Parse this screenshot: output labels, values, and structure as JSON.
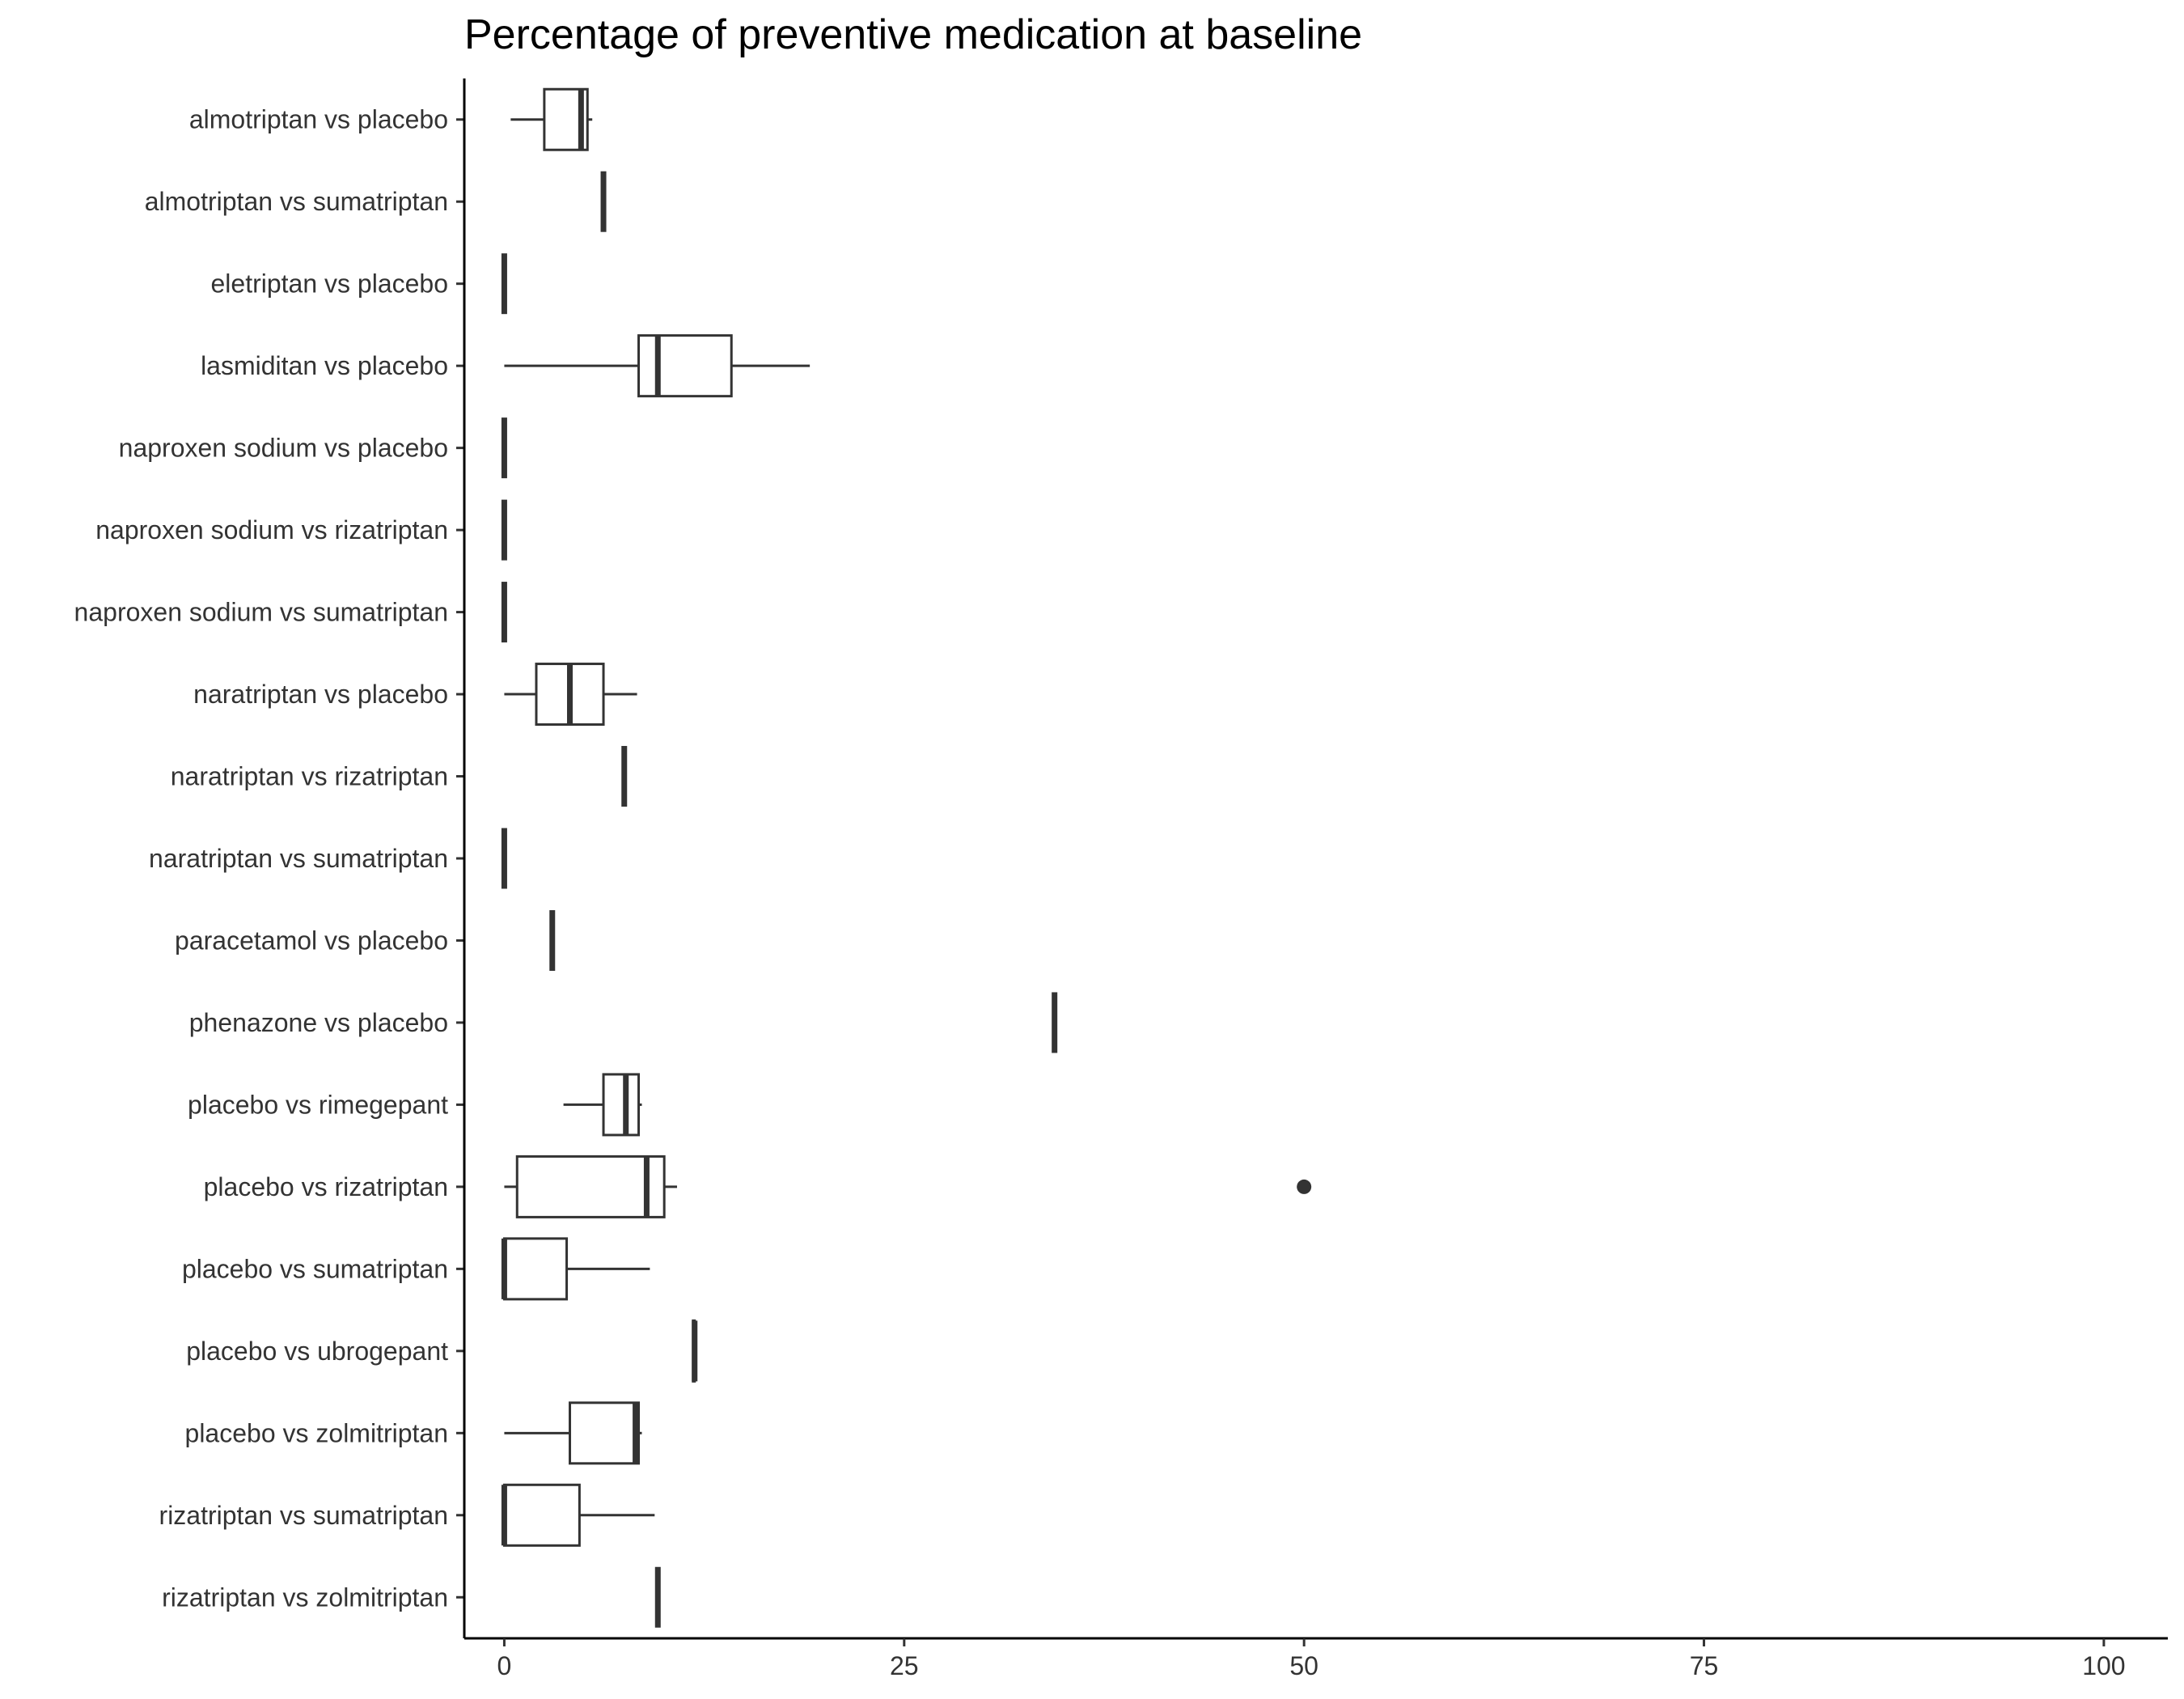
{
  "chart_data": {
    "type": "boxplot",
    "orientation": "horizontal",
    "title": "Percentage of preventive medication at baseline",
    "xlabel": "",
    "ylabel": "",
    "xlim": [
      -2.5,
      104
    ],
    "xticks": [
      0,
      25,
      50,
      75,
      100
    ],
    "grid": false,
    "legend": "none",
    "colors": {
      "box_stroke": "#333333",
      "axis": "#000000",
      "fill": "#ffffff",
      "text": "#333333"
    },
    "categories": [
      "almotriptan vs placebo",
      "almotriptan vs sumatriptan",
      "eletriptan vs placebo",
      "lasmiditan vs placebo",
      "naproxen sodium vs placebo",
      "naproxen sodium vs rizatriptan",
      "naproxen sodium vs sumatriptan",
      "naratriptan vs placebo",
      "naratriptan vs rizatriptan",
      "naratriptan vs sumatriptan",
      "paracetamol vs placebo",
      "phenazone vs placebo",
      "placebo vs rimegepant",
      "placebo vs rizatriptan",
      "placebo vs sumatriptan",
      "placebo vs ubrogepant",
      "placebo vs zolmitriptan",
      "rizatriptan vs sumatriptan",
      "rizatriptan vs zolmitriptan"
    ],
    "boxes": [
      {
        "min": 0.4,
        "q1": 2.5,
        "median": 4.8,
        "q3": 5.2,
        "max": 5.5,
        "outliers": []
      },
      {
        "min": 6.2,
        "q1": 6.2,
        "median": 6.2,
        "q3": 6.2,
        "max": 6.2,
        "outliers": []
      },
      {
        "min": 0,
        "q1": 0,
        "median": 0,
        "q3": 0,
        "max": 0,
        "outliers": []
      },
      {
        "min": 0,
        "q1": 8.4,
        "median": 9.6,
        "q3": 14.2,
        "max": 19.1,
        "outliers": []
      },
      {
        "min": 0,
        "q1": 0,
        "median": 0,
        "q3": 0,
        "max": 0,
        "outliers": []
      },
      {
        "min": 0,
        "q1": 0,
        "median": 0,
        "q3": 0,
        "max": 0,
        "outliers": []
      },
      {
        "min": 0,
        "q1": 0,
        "median": 0,
        "q3": 0,
        "max": 0,
        "outliers": []
      },
      {
        "min": 0,
        "q1": 2.0,
        "median": 4.1,
        "q3": 6.2,
        "max": 8.3,
        "outliers": []
      },
      {
        "min": 7.5,
        "q1": 7.5,
        "median": 7.5,
        "q3": 7.5,
        "max": 7.5,
        "outliers": []
      },
      {
        "min": 0,
        "q1": 0,
        "median": 0,
        "q3": 0,
        "max": 0,
        "outliers": []
      },
      {
        "min": 3.0,
        "q1": 3.0,
        "median": 3.0,
        "q3": 3.0,
        "max": 3.0,
        "outliers": []
      },
      {
        "min": 34.4,
        "q1": 34.4,
        "median": 34.4,
        "q3": 34.4,
        "max": 34.4,
        "outliers": []
      },
      {
        "min": 3.7,
        "q1": 6.2,
        "median": 7.6,
        "q3": 8.4,
        "max": 8.6,
        "outliers": []
      },
      {
        "min": 0,
        "q1": 0.8,
        "median": 8.9,
        "q3": 10.0,
        "max": 10.8,
        "outliers": [
          50
        ]
      },
      {
        "min": 0,
        "q1": 0,
        "median": 0,
        "q3": 3.9,
        "max": 9.1,
        "outliers": []
      },
      {
        "min": 11.8,
        "q1": 11.8,
        "median": 11.9,
        "q3": 11.9,
        "max": 11.9,
        "outliers": []
      },
      {
        "min": 0,
        "q1": 4.1,
        "median": 8.2,
        "q3": 8.4,
        "max": 8.6,
        "outliers": []
      },
      {
        "min": 0,
        "q1": 0,
        "median": 0,
        "q3": 4.7,
        "max": 9.4,
        "outliers": []
      },
      {
        "min": 9.6,
        "q1": 9.6,
        "median": 9.6,
        "q3": 9.6,
        "max": 9.6,
        "outliers": []
      }
    ]
  }
}
